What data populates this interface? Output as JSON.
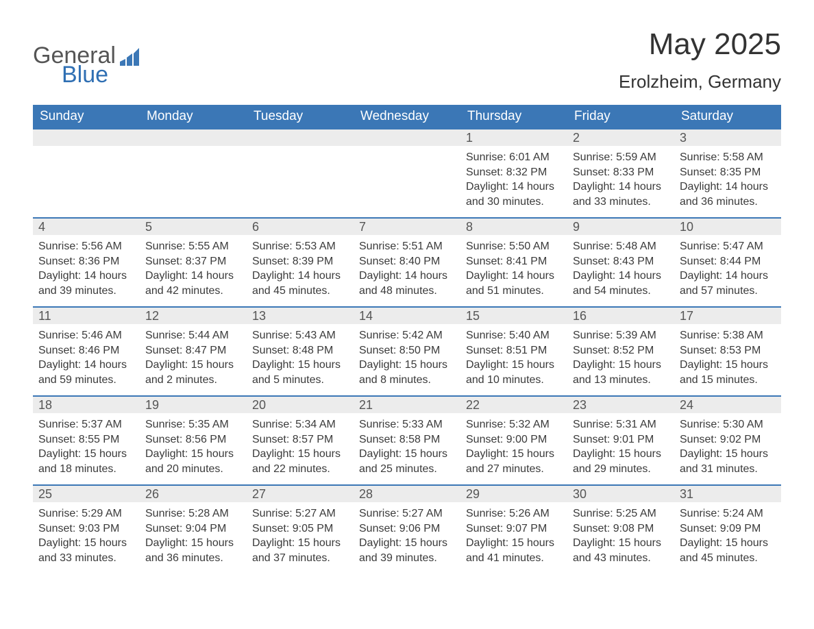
{
  "logo": {
    "text_general": "General",
    "text_blue": "Blue",
    "icon_color": "#3b77b6"
  },
  "header": {
    "title": "May 2025",
    "location": "Erolzheim, Germany"
  },
  "colors": {
    "header_bg": "#3b77b6",
    "header_text": "#ffffff",
    "daynum_bg": "#ececec",
    "week_divider": "#3b77b6",
    "body_text": "#3a3a3a"
  },
  "weekdays": [
    "Sunday",
    "Monday",
    "Tuesday",
    "Wednesday",
    "Thursday",
    "Friday",
    "Saturday"
  ],
  "labels": {
    "sunrise": "Sunrise:",
    "sunset": "Sunset:",
    "daylight": "Daylight:"
  },
  "weeks": [
    [
      {
        "blank": true
      },
      {
        "blank": true
      },
      {
        "blank": true
      },
      {
        "blank": true
      },
      {
        "n": "1",
        "sunrise": "6:01 AM",
        "sunset": "8:32 PM",
        "daylight": "14 hours and 30 minutes."
      },
      {
        "n": "2",
        "sunrise": "5:59 AM",
        "sunset": "8:33 PM",
        "daylight": "14 hours and 33 minutes."
      },
      {
        "n": "3",
        "sunrise": "5:58 AM",
        "sunset": "8:35 PM",
        "daylight": "14 hours and 36 minutes."
      }
    ],
    [
      {
        "n": "4",
        "sunrise": "5:56 AM",
        "sunset": "8:36 PM",
        "daylight": "14 hours and 39 minutes."
      },
      {
        "n": "5",
        "sunrise": "5:55 AM",
        "sunset": "8:37 PM",
        "daylight": "14 hours and 42 minutes."
      },
      {
        "n": "6",
        "sunrise": "5:53 AM",
        "sunset": "8:39 PM",
        "daylight": "14 hours and 45 minutes."
      },
      {
        "n": "7",
        "sunrise": "5:51 AM",
        "sunset": "8:40 PM",
        "daylight": "14 hours and 48 minutes."
      },
      {
        "n": "8",
        "sunrise": "5:50 AM",
        "sunset": "8:41 PM",
        "daylight": "14 hours and 51 minutes."
      },
      {
        "n": "9",
        "sunrise": "5:48 AM",
        "sunset": "8:43 PM",
        "daylight": "14 hours and 54 minutes."
      },
      {
        "n": "10",
        "sunrise": "5:47 AM",
        "sunset": "8:44 PM",
        "daylight": "14 hours and 57 minutes."
      }
    ],
    [
      {
        "n": "11",
        "sunrise": "5:46 AM",
        "sunset": "8:46 PM",
        "daylight": "14 hours and 59 minutes."
      },
      {
        "n": "12",
        "sunrise": "5:44 AM",
        "sunset": "8:47 PM",
        "daylight": "15 hours and 2 minutes."
      },
      {
        "n": "13",
        "sunrise": "5:43 AM",
        "sunset": "8:48 PM",
        "daylight": "15 hours and 5 minutes."
      },
      {
        "n": "14",
        "sunrise": "5:42 AM",
        "sunset": "8:50 PM",
        "daylight": "15 hours and 8 minutes."
      },
      {
        "n": "15",
        "sunrise": "5:40 AM",
        "sunset": "8:51 PM",
        "daylight": "15 hours and 10 minutes."
      },
      {
        "n": "16",
        "sunrise": "5:39 AM",
        "sunset": "8:52 PM",
        "daylight": "15 hours and 13 minutes."
      },
      {
        "n": "17",
        "sunrise": "5:38 AM",
        "sunset": "8:53 PM",
        "daylight": "15 hours and 15 minutes."
      }
    ],
    [
      {
        "n": "18",
        "sunrise": "5:37 AM",
        "sunset": "8:55 PM",
        "daylight": "15 hours and 18 minutes."
      },
      {
        "n": "19",
        "sunrise": "5:35 AM",
        "sunset": "8:56 PM",
        "daylight": "15 hours and 20 minutes."
      },
      {
        "n": "20",
        "sunrise": "5:34 AM",
        "sunset": "8:57 PM",
        "daylight": "15 hours and 22 minutes."
      },
      {
        "n": "21",
        "sunrise": "5:33 AM",
        "sunset": "8:58 PM",
        "daylight": "15 hours and 25 minutes."
      },
      {
        "n": "22",
        "sunrise": "5:32 AM",
        "sunset": "9:00 PM",
        "daylight": "15 hours and 27 minutes."
      },
      {
        "n": "23",
        "sunrise": "5:31 AM",
        "sunset": "9:01 PM",
        "daylight": "15 hours and 29 minutes."
      },
      {
        "n": "24",
        "sunrise": "5:30 AM",
        "sunset": "9:02 PM",
        "daylight": "15 hours and 31 minutes."
      }
    ],
    [
      {
        "n": "25",
        "sunrise": "5:29 AM",
        "sunset": "9:03 PM",
        "daylight": "15 hours and 33 minutes."
      },
      {
        "n": "26",
        "sunrise": "5:28 AM",
        "sunset": "9:04 PM",
        "daylight": "15 hours and 36 minutes."
      },
      {
        "n": "27",
        "sunrise": "5:27 AM",
        "sunset": "9:05 PM",
        "daylight": "15 hours and 37 minutes."
      },
      {
        "n": "28",
        "sunrise": "5:27 AM",
        "sunset": "9:06 PM",
        "daylight": "15 hours and 39 minutes."
      },
      {
        "n": "29",
        "sunrise": "5:26 AM",
        "sunset": "9:07 PM",
        "daylight": "15 hours and 41 minutes."
      },
      {
        "n": "30",
        "sunrise": "5:25 AM",
        "sunset": "9:08 PM",
        "daylight": "15 hours and 43 minutes."
      },
      {
        "n": "31",
        "sunrise": "5:24 AM",
        "sunset": "9:09 PM",
        "daylight": "15 hours and 45 minutes."
      }
    ]
  ]
}
